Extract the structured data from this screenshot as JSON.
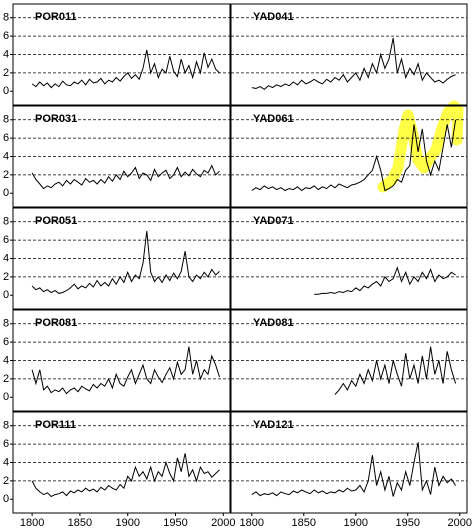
{
  "chart_data": [
    {
      "type": "line",
      "title": "POR011",
      "color": "#000000",
      "xlim": [
        1780,
        2007
      ],
      "ylim": [
        -1.5,
        9.5
      ],
      "yticks": [
        0,
        2,
        4,
        6,
        8
      ],
      "grid": true,
      "x": [
        1800,
        1804,
        1808,
        1812,
        1816,
        1820,
        1824,
        1828,
        1832,
        1836,
        1840,
        1844,
        1848,
        1852,
        1856,
        1860,
        1864,
        1868,
        1872,
        1876,
        1880,
        1884,
        1888,
        1892,
        1896,
        1900,
        1904,
        1908,
        1912,
        1916,
        1920,
        1924,
        1928,
        1932,
        1936,
        1940,
        1944,
        1948,
        1952,
        1956,
        1960,
        1964,
        1968,
        1972,
        1976,
        1980,
        1984,
        1988,
        1992,
        1996
      ],
      "values": [
        0.8,
        0.5,
        1.0,
        0.6,
        0.9,
        0.4,
        0.8,
        0.5,
        1.1,
        0.7,
        0.6,
        1.0,
        0.8,
        1.2,
        0.7,
        1.3,
        0.9,
        1.0,
        1.4,
        0.8,
        1.2,
        1.0,
        1.5,
        1.1,
        1.6,
        2.0,
        1.4,
        1.8,
        1.3,
        2.5,
        4.5,
        2.0,
        3.0,
        1.5,
        2.4,
        2.0,
        3.8,
        2.2,
        1.6,
        3.5,
        2.0,
        2.8,
        1.5,
        3.2,
        2.0,
        4.2,
        2.6,
        3.5,
        2.4,
        2.0
      ]
    },
    {
      "type": "line",
      "title": "YAD041",
      "color": "#000000",
      "xlim": [
        1780,
        2007
      ],
      "ylim": [
        -1.5,
        9.5
      ],
      "yticks": [
        0,
        2,
        4,
        6,
        8
      ],
      "grid": true,
      "x": [
        1800,
        1804,
        1808,
        1812,
        1816,
        1820,
        1824,
        1828,
        1832,
        1836,
        1840,
        1844,
        1848,
        1852,
        1856,
        1860,
        1864,
        1868,
        1872,
        1876,
        1880,
        1884,
        1888,
        1892,
        1896,
        1900,
        1904,
        1908,
        1912,
        1916,
        1920,
        1924,
        1928,
        1932,
        1936,
        1940,
        1944,
        1948,
        1952,
        1956,
        1960,
        1964,
        1968,
        1972,
        1976,
        1980,
        1984,
        1988,
        1992,
        1996
      ],
      "values": [
        0.4,
        0.3,
        0.5,
        0.2,
        0.6,
        0.4,
        0.7,
        0.5,
        0.8,
        0.6,
        1.0,
        0.7,
        1.2,
        0.8,
        1.0,
        1.3,
        1.0,
        0.8,
        1.3,
        1.0,
        1.5,
        1.2,
        1.8,
        1.0,
        1.5,
        2.0,
        1.2,
        2.5,
        1.5,
        3.0,
        2.0,
        4.0,
        2.5,
        3.5,
        5.8,
        2.0,
        3.5,
        1.5,
        2.5,
        1.8,
        3.0,
        1.2,
        2.0,
        1.5,
        1.0,
        1.2,
        0.9,
        1.3,
        1.6,
        1.8
      ]
    },
    {
      "type": "line",
      "title": "POR031",
      "color": "#000000",
      "xlim": [
        1780,
        2007
      ],
      "ylim": [
        -1.5,
        9.5
      ],
      "yticks": [
        0,
        2,
        4,
        6,
        8
      ],
      "grid": true,
      "x": [
        1800,
        1804,
        1808,
        1812,
        1816,
        1820,
        1824,
        1828,
        1832,
        1836,
        1840,
        1844,
        1848,
        1852,
        1856,
        1860,
        1864,
        1868,
        1872,
        1876,
        1880,
        1884,
        1888,
        1892,
        1896,
        1900,
        1904,
        1908,
        1912,
        1916,
        1920,
        1924,
        1928,
        1932,
        1936,
        1940,
        1944,
        1948,
        1952,
        1956,
        1960,
        1964,
        1968,
        1972,
        1976,
        1980,
        1984,
        1988,
        1992,
        1996
      ],
      "values": [
        2.2,
        1.5,
        1.0,
        0.5,
        0.8,
        0.6,
        1.0,
        1.2,
        0.8,
        1.4,
        1.0,
        1.5,
        1.2,
        0.9,
        1.6,
        1.2,
        1.4,
        1.0,
        1.5,
        1.1,
        1.8,
        1.3,
        2.0,
        1.5,
        2.4,
        1.8,
        2.2,
        2.8,
        1.6,
        2.2,
        2.0,
        1.4,
        2.6,
        1.8,
        2.2,
        2.5,
        1.6,
        2.0,
        2.8,
        1.8,
        2.3,
        1.9,
        2.6,
        2.1,
        1.8,
        2.5,
        2.2,
        3.0,
        2.0,
        2.4
      ]
    },
    {
      "type": "line",
      "title": "YAD061",
      "color": "#000000",
      "xlim": [
        1780,
        2007
      ],
      "ylim": [
        -1.5,
        9.5
      ],
      "yticks": [
        0,
        2,
        4,
        6,
        8
      ],
      "grid": true,
      "x": [
        1800,
        1804,
        1808,
        1812,
        1816,
        1820,
        1824,
        1828,
        1832,
        1836,
        1840,
        1844,
        1848,
        1852,
        1856,
        1860,
        1864,
        1868,
        1872,
        1876,
        1880,
        1884,
        1888,
        1892,
        1896,
        1900,
        1904,
        1908,
        1912,
        1916,
        1920,
        1924,
        1928,
        1932,
        1936,
        1940,
        1944,
        1948,
        1952,
        1956,
        1960,
        1964,
        1968,
        1972,
        1976,
        1980,
        1984,
        1988,
        1992,
        1996
      ],
      "values": [
        0.3,
        0.6,
        0.4,
        0.8,
        0.5,
        0.7,
        0.4,
        0.6,
        0.3,
        0.5,
        0.4,
        0.7,
        0.3,
        0.6,
        0.5,
        0.8,
        0.4,
        0.7,
        0.5,
        0.9,
        0.6,
        1.0,
        0.8,
        0.6,
        0.9,
        1.0,
        1.2,
        1.5,
        2.0,
        2.5,
        4.0,
        2.5,
        0.3,
        0.5,
        0.8,
        1.5,
        1.2,
        2.5,
        3.0,
        7.5,
        4.5,
        7.0,
        3.5,
        2.0,
        3.5,
        2.5,
        5.0,
        7.5,
        5.0,
        8.0
      ]
    },
    {
      "type": "line",
      "title": "POR051",
      "color": "#000000",
      "xlim": [
        1780,
        2007
      ],
      "ylim": [
        -1.5,
        9.5
      ],
      "yticks": [
        0,
        2,
        4,
        6,
        8
      ],
      "grid": true,
      "x": [
        1800,
        1804,
        1808,
        1812,
        1816,
        1820,
        1824,
        1828,
        1832,
        1836,
        1840,
        1844,
        1848,
        1852,
        1856,
        1860,
        1864,
        1868,
        1872,
        1876,
        1880,
        1884,
        1888,
        1892,
        1896,
        1900,
        1904,
        1908,
        1912,
        1916,
        1920,
        1924,
        1928,
        1932,
        1936,
        1940,
        1944,
        1948,
        1952,
        1956,
        1960,
        1964,
        1968,
        1972,
        1976,
        1980,
        1984,
        1988,
        1992,
        1996
      ],
      "values": [
        1.0,
        0.6,
        0.8,
        0.4,
        0.6,
        0.3,
        0.5,
        0.2,
        0.3,
        0.5,
        0.8,
        1.2,
        0.7,
        1.0,
        0.8,
        1.3,
        0.9,
        1.6,
        1.0,
        1.4,
        1.0,
        1.8,
        1.2,
        2.0,
        1.4,
        2.5,
        1.5,
        2.2,
        1.8,
        3.5,
        7.0,
        2.5,
        1.5,
        2.0,
        1.4,
        2.2,
        1.6,
        2.4,
        1.8,
        2.6,
        4.8,
        2.0,
        1.5,
        2.2,
        1.8,
        2.5,
        2.0,
        2.8,
        2.2,
        2.6
      ]
    },
    {
      "type": "line",
      "title": "YAD071",
      "color": "#000000",
      "xlim": [
        1780,
        2007
      ],
      "ylim": [
        -1.5,
        9.5
      ],
      "yticks": [
        0,
        2,
        4,
        6,
        8
      ],
      "grid": true,
      "x": [
        1800,
        1804,
        1808,
        1812,
        1816,
        1820,
        1824,
        1828,
        1832,
        1836,
        1840,
        1844,
        1848,
        1852,
        1856,
        1860,
        1864,
        1868,
        1872,
        1876,
        1880,
        1884,
        1888,
        1892,
        1896,
        1900,
        1904,
        1908,
        1912,
        1916,
        1920,
        1924,
        1928,
        1932,
        1936,
        1940,
        1944,
        1948,
        1952,
        1956,
        1960,
        1964,
        1968,
        1972,
        1976,
        1980,
        1984,
        1988,
        1992,
        1996
      ],
      "values": [
        null,
        null,
        null,
        null,
        null,
        null,
        null,
        null,
        null,
        null,
        null,
        null,
        null,
        null,
        null,
        0.1,
        0.1,
        0.2,
        0.2,
        0.3,
        0.2,
        0.4,
        0.3,
        0.5,
        0.4,
        0.8,
        0.5,
        1.0,
        0.8,
        1.2,
        1.5,
        1.0,
        2.0,
        1.5,
        1.8,
        3.0,
        1.5,
        2.5,
        1.2,
        2.0,
        1.5,
        2.5,
        1.8,
        2.8,
        1.5,
        2.2,
        1.8,
        2.0,
        2.5,
        2.2
      ]
    },
    {
      "type": "line",
      "title": "POR081",
      "color": "#000000",
      "xlim": [
        1780,
        2007
      ],
      "ylim": [
        -1.5,
        9.5
      ],
      "yticks": [
        0,
        2,
        4,
        6,
        8
      ],
      "grid": true,
      "x": [
        1800,
        1804,
        1808,
        1812,
        1816,
        1820,
        1824,
        1828,
        1832,
        1836,
        1840,
        1844,
        1848,
        1852,
        1856,
        1860,
        1864,
        1868,
        1872,
        1876,
        1880,
        1884,
        1888,
        1892,
        1896,
        1900,
        1904,
        1908,
        1912,
        1916,
        1920,
        1924,
        1928,
        1932,
        1936,
        1940,
        1944,
        1948,
        1952,
        1956,
        1960,
        1964,
        1968,
        1972,
        1976,
        1980,
        1984,
        1988,
        1992,
        1996
      ],
      "values": [
        3.0,
        1.5,
        3.0,
        0.8,
        1.2,
        0.5,
        0.8,
        0.6,
        1.0,
        0.4,
        0.8,
        1.0,
        0.6,
        1.2,
        0.9,
        0.7,
        1.4,
        1.0,
        1.5,
        1.2,
        2.0,
        1.0,
        2.5,
        1.5,
        1.2,
        2.2,
        3.0,
        1.5,
        2.5,
        3.5,
        2.0,
        1.5,
        3.0,
        2.2,
        1.6,
        2.5,
        3.2,
        2.0,
        3.8,
        2.5,
        3.0,
        5.5,
        2.5,
        4.0,
        2.0,
        3.0,
        2.5,
        4.5,
        3.5,
        2.2
      ]
    },
    {
      "type": "line",
      "title": "YAD081",
      "color": "#000000",
      "xlim": [
        1780,
        2007
      ],
      "ylim": [
        -1.5,
        9.5
      ],
      "yticks": [
        0,
        2,
        4,
        6,
        8
      ],
      "grid": true,
      "x": [
        1800,
        1804,
        1808,
        1812,
        1816,
        1820,
        1824,
        1828,
        1832,
        1836,
        1840,
        1844,
        1848,
        1852,
        1856,
        1860,
        1864,
        1868,
        1872,
        1876,
        1880,
        1884,
        1888,
        1892,
        1896,
        1900,
        1904,
        1908,
        1912,
        1916,
        1920,
        1924,
        1928,
        1932,
        1936,
        1940,
        1944,
        1948,
        1952,
        1956,
        1960,
        1964,
        1968,
        1972,
        1976,
        1980,
        1984,
        1988,
        1992,
        1996
      ],
      "values": [
        null,
        null,
        null,
        null,
        null,
        null,
        null,
        null,
        null,
        null,
        null,
        null,
        null,
        null,
        null,
        null,
        null,
        null,
        null,
        null,
        0.3,
        0.8,
        1.5,
        0.8,
        1.8,
        1.2,
        2.5,
        1.5,
        3.0,
        1.8,
        4.0,
        2.0,
        3.5,
        1.5,
        4.0,
        2.5,
        1.2,
        4.8,
        2.0,
        3.5,
        1.5,
        4.5,
        2.0,
        5.5,
        2.5,
        4.0,
        1.5,
        5.0,
        3.0,
        1.5
      ]
    },
    {
      "type": "line",
      "title": "POR111",
      "color": "#000000",
      "xlim": [
        1780,
        2007
      ],
      "ylim": [
        -1.5,
        9.5
      ],
      "yticks": [
        0,
        2,
        4,
        6,
        8
      ],
      "grid": true,
      "xticks": [
        1800,
        1850,
        1900,
        1950,
        2000
      ],
      "x": [
        1800,
        1804,
        1808,
        1812,
        1816,
        1820,
        1824,
        1828,
        1832,
        1836,
        1840,
        1844,
        1848,
        1852,
        1856,
        1860,
        1864,
        1868,
        1872,
        1876,
        1880,
        1884,
        1888,
        1892,
        1896,
        1900,
        1904,
        1908,
        1912,
        1916,
        1920,
        1924,
        1928,
        1932,
        1936,
        1940,
        1944,
        1948,
        1952,
        1956,
        1960,
        1964,
        1968,
        1972,
        1976,
        1980,
        1984,
        1988,
        1992,
        1996
      ],
      "values": [
        2.0,
        1.2,
        0.8,
        0.5,
        0.7,
        0.3,
        0.5,
        0.6,
        0.8,
        0.4,
        0.9,
        0.7,
        1.0,
        0.8,
        1.2,
        0.9,
        1.1,
        0.8,
        1.3,
        1.0,
        1.5,
        1.2,
        1.0,
        1.6,
        1.2,
        2.5,
        2.0,
        3.5,
        2.5,
        3.0,
        2.2,
        3.5,
        2.0,
        3.0,
        2.5,
        4.0,
        2.8,
        2.0,
        4.5,
        3.0,
        5.0,
        2.5,
        3.2,
        2.0,
        3.5,
        2.8,
        3.0,
        2.4,
        2.8,
        3.2
      ]
    },
    {
      "type": "line",
      "title": "YAD121",
      "color": "#000000",
      "xlim": [
        1780,
        2007
      ],
      "ylim": [
        -1.5,
        9.5
      ],
      "yticks": [
        0,
        2,
        4,
        6,
        8
      ],
      "grid": true,
      "xticks": [
        1800,
        1850,
        1900,
        1950,
        2000
      ],
      "x": [
        1800,
        1804,
        1808,
        1812,
        1816,
        1820,
        1824,
        1828,
        1832,
        1836,
        1840,
        1844,
        1848,
        1852,
        1856,
        1860,
        1864,
        1868,
        1872,
        1876,
        1880,
        1884,
        1888,
        1892,
        1896,
        1900,
        1904,
        1908,
        1912,
        1916,
        1920,
        1924,
        1928,
        1932,
        1936,
        1940,
        1944,
        1948,
        1952,
        1956,
        1960,
        1964,
        1968,
        1972,
        1976,
        1980,
        1984,
        1988,
        1992,
        1996
      ],
      "values": [
        0.5,
        0.8,
        0.4,
        0.6,
        0.5,
        0.7,
        0.4,
        0.8,
        0.6,
        0.5,
        0.9,
        0.7,
        1.0,
        0.8,
        0.6,
        1.0,
        0.7,
        0.9,
        0.6,
        0.8,
        0.7,
        1.0,
        0.8,
        1.2,
        0.9,
        1.0,
        1.5,
        0.8,
        2.0,
        4.8,
        1.5,
        3.0,
        1.0,
        2.5,
        0.3,
        1.8,
        1.0,
        3.0,
        1.5,
        4.0,
        6.2,
        1.0,
        2.0,
        0.5,
        3.5,
        1.5,
        2.5,
        1.8,
        2.2,
        1.5
      ]
    }
  ]
}
